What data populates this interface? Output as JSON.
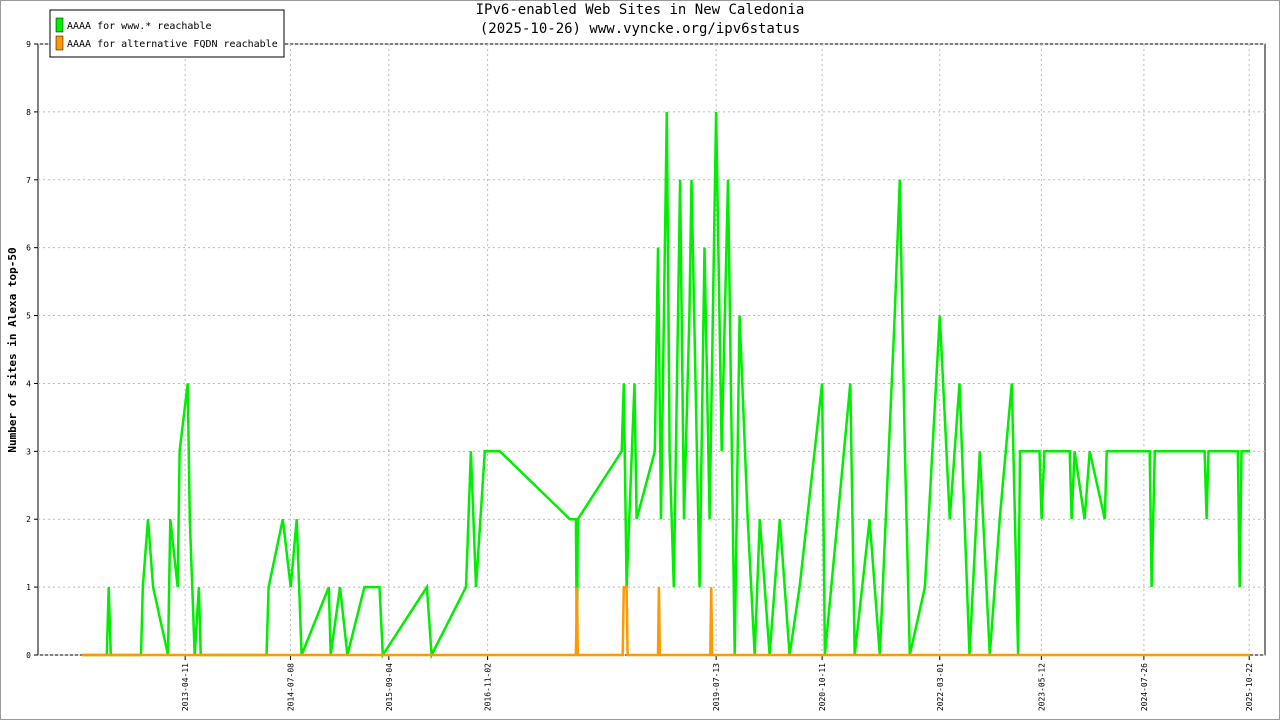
{
  "chart_data": {
    "type": "line",
    "title": "IPv6-enabled Web Sites in New Caledonia",
    "subtitle": "(2025-10-26) www.vyncke.org/ipv6status",
    "y_label": "Number of sites in Alexa top-50",
    "xlim": [
      "2011-07-18",
      "2025-12-29"
    ],
    "xticks": [
      "2013-04-11",
      "2014-07-08",
      "2015-09-04",
      "2016-11-02",
      "2019-07-13",
      "2020-10-11",
      "2022-03-01",
      "2023-05-12",
      "2024-07-26",
      "2025-10-22"
    ],
    "ylim": [
      0,
      9
    ],
    "yticks": [
      0,
      1,
      2,
      3,
      4,
      5,
      6,
      7,
      8,
      9
    ],
    "grid": true,
    "legend": "upper left",
    "series": [
      {
        "name": "AAAA for www.* reachable",
        "color": "#00ee00",
        "x": [
          "2012-01-23",
          "2012-05-09",
          "2012-05-17",
          "2012-05-26",
          "2012-10-03",
          "2012-10-11",
          "2012-11-02",
          "2012-11-24",
          "2013-01-27",
          "2013-02-06",
          "2013-03-10",
          "2013-03-18",
          "2013-04-22",
          "2013-05-01",
          "2013-05-22",
          "2013-06-09",
          "2013-06-17",
          "2014-03-27",
          "2014-04-05",
          "2014-06-05",
          "2014-07-09",
          "2014-08-04",
          "2014-08-25",
          "2014-12-20",
          "2014-12-28",
          "2015-02-06",
          "2015-03-10",
          "2015-05-22",
          "2015-07-26",
          "2015-08-09",
          "2016-02-15",
          "2016-03-06",
          "2016-08-01",
          "2016-08-22",
          "2016-09-13",
          "2016-10-21",
          "2016-12-25",
          "2017-10-22",
          "2017-11-17",
          "2017-11-21",
          "2017-11-25",
          "2018-06-02",
          "2018-06-11",
          "2018-06-23",
          "2018-07-27",
          "2018-08-05",
          "2018-10-22",
          "2018-11-05",
          "2018-11-18",
          "2018-12-13",
          "2018-12-25",
          "2019-01-12",
          "2019-02-08",
          "2019-02-25",
          "2019-03-20",
          "2019-03-29",
          "2019-05-03",
          "2019-05-24",
          "2019-06-15",
          "2019-07-13",
          "2019-08-06",
          "2019-09-02",
          "2019-10-01",
          "2019-10-22",
          "2019-11-26",
          "2019-12-26",
          "2020-01-17",
          "2020-02-28",
          "2020-04-12",
          "2020-05-24",
          "2020-07-06",
          "2020-10-11",
          "2020-10-23",
          "2021-02-09",
          "2021-02-28",
          "2021-05-03",
          "2021-06-16",
          "2021-08-19",
          "2021-09-10",
          "2021-10-02",
          "2021-10-23",
          "2021-12-27",
          "2022-03-01",
          "2022-04-13",
          "2022-05-25",
          "2022-07-07",
          "2022-08-20",
          "2022-10-02",
          "2022-11-14",
          "2023-01-05",
          "2023-02-01",
          "2023-02-09",
          "2023-05-04",
          "2023-05-13",
          "2023-05-25",
          "2023-09-11",
          "2023-09-19",
          "2023-10-02",
          "2023-11-14",
          "2023-12-06",
          "2024-02-09",
          "2024-02-17",
          "2024-08-20",
          "2024-08-28",
          "2024-09-11",
          "2025-04-13",
          "2025-04-22",
          "2025-04-30",
          "2025-09-03",
          "2025-09-11",
          "2025-09-19",
          "2025-10-26"
        ],
        "values": [
          0,
          0,
          1,
          0,
          0,
          1,
          2,
          1,
          0,
          2,
          1,
          3,
          4,
          2,
          0,
          1,
          0,
          0,
          1,
          2,
          1,
          2,
          0,
          1,
          0,
          1,
          0,
          1,
          1,
          0,
          1,
          0,
          1,
          3,
          1,
          3,
          3,
          2,
          2,
          0,
          2,
          3,
          4,
          1,
          4,
          2,
          3,
          6,
          2,
          8,
          3,
          1,
          7,
          2,
          5,
          7,
          1,
          6,
          2,
          8,
          3,
          7,
          0,
          5,
          2,
          0,
          2,
          0,
          2,
          0,
          1,
          4,
          0,
          4,
          0,
          2,
          0,
          5,
          7,
          3,
          0,
          1,
          5,
          2,
          4,
          0,
          3,
          0,
          2,
          4,
          0,
          3,
          3,
          2,
          3,
          3,
          2,
          3,
          2,
          3,
          2,
          3,
          3,
          1,
          3,
          3,
          2,
          3,
          3,
          1,
          3,
          3
        ]
      },
      {
        "name": "AAAA for alternative FQDN reachable",
        "color": "#ff9900",
        "x": [
          "2012-01-23",
          "2017-11-17",
          "2017-11-21",
          "2017-11-25",
          "2018-06-06",
          "2018-06-11",
          "2018-06-23",
          "2018-06-27",
          "2018-11-05",
          "2018-11-09",
          "2018-11-13",
          "2019-06-18",
          "2019-06-22",
          "2019-06-26",
          "2025-10-26"
        ],
        "values": [
          0,
          0,
          1,
          0,
          0,
          1,
          1,
          0,
          0,
          1,
          0,
          0,
          1,
          0,
          0
        ]
      }
    ]
  }
}
